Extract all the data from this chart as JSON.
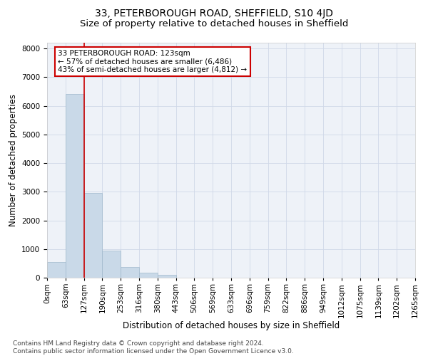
{
  "title_line1": "33, PETERBOROUGH ROAD, SHEFFIELD, S10 4JD",
  "title_line2": "Size of property relative to detached houses in Sheffield",
  "xlabel": "Distribution of detached houses by size in Sheffield",
  "ylabel": "Number of detached properties",
  "bin_labels": [
    "0sqm",
    "63sqm",
    "127sqm",
    "190sqm",
    "253sqm",
    "316sqm",
    "380sqm",
    "443sqm",
    "506sqm",
    "569sqm",
    "633sqm",
    "696sqm",
    "759sqm",
    "822sqm",
    "886sqm",
    "949sqm",
    "1012sqm",
    "1075sqm",
    "1139sqm",
    "1202sqm",
    "1265sqm"
  ],
  "bar_values": [
    550,
    6400,
    2950,
    950,
    370,
    170,
    100,
    0,
    0,
    0,
    0,
    0,
    0,
    0,
    0,
    0,
    0,
    0,
    0,
    0
  ],
  "bar_color": "#c9d9e8",
  "bar_edge_color": "#a0b8cc",
  "vline_x": 2,
  "vline_color": "#cc0000",
  "annotation_text": "33 PETERBOROUGH ROAD: 123sqm\n← 57% of detached houses are smaller (6,486)\n43% of semi-detached houses are larger (4,812) →",
  "annotation_box_edgecolor": "#cc0000",
  "ylim": [
    0,
    8200
  ],
  "yticks": [
    0,
    1000,
    2000,
    3000,
    4000,
    5000,
    6000,
    7000,
    8000
  ],
  "grid_color": "#d0d8e8",
  "bg_color": "#eef2f8",
  "footer_text": "Contains HM Land Registry data © Crown copyright and database right 2024.\nContains public sector information licensed under the Open Government Licence v3.0.",
  "title_fontsize": 10,
  "subtitle_fontsize": 9.5,
  "xlabel_fontsize": 8.5,
  "ylabel_fontsize": 8.5,
  "tick_fontsize": 7.5,
  "annotation_fontsize": 7.5,
  "footer_fontsize": 6.5
}
